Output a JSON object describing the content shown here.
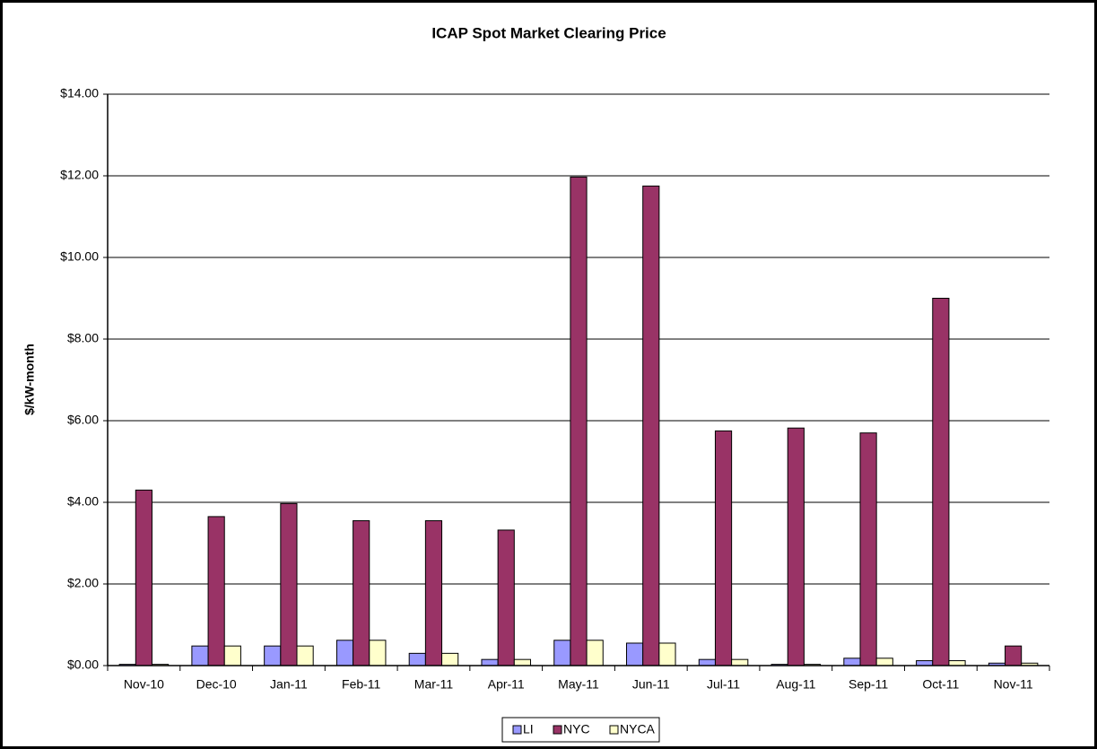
{
  "chart_data": {
    "type": "bar",
    "title": "ICAP Spot Market Clearing Price",
    "y_label": "$/kW-month",
    "categories": [
      "Nov-10",
      "Dec-10",
      "Jan-11",
      "Feb-11",
      "Mar-11",
      "Apr-11",
      "May-11",
      "Jun-11",
      "Jul-11",
      "Aug-11",
      "Sep-11",
      "Oct-11",
      "Nov-11"
    ],
    "series": [
      {
        "name": "LI",
        "color": "#9999ff",
        "values": [
          0.03,
          0.48,
          0.48,
          0.62,
          0.3,
          0.15,
          0.62,
          0.55,
          0.15,
          0.03,
          0.18,
          0.12,
          0.06
        ]
      },
      {
        "name": "NYC",
        "color": "#993366",
        "values": [
          4.3,
          3.65,
          3.97,
          3.55,
          3.55,
          3.32,
          11.97,
          11.75,
          5.75,
          5.82,
          5.7,
          9.0,
          0.48
        ]
      },
      {
        "name": "NYCA",
        "color": "#ffffcc",
        "values": [
          0.03,
          0.48,
          0.48,
          0.62,
          0.3,
          0.15,
          0.62,
          0.55,
          0.15,
          0.03,
          0.18,
          0.12,
          0.06
        ]
      }
    ],
    "ylim": [
      0,
      14
    ],
    "yticks": [
      {
        "value": 0,
        "label": "$0.00"
      },
      {
        "value": 2,
        "label": "$2.00"
      },
      {
        "value": 4,
        "label": "$4.00"
      },
      {
        "value": 6,
        "label": "$6.00"
      },
      {
        "value": 8,
        "label": "$8.00"
      },
      {
        "value": 10,
        "label": "$10.00"
      },
      {
        "value": 12,
        "label": "$12.00"
      },
      {
        "value": 14,
        "label": "$14.00"
      }
    ],
    "grid": true,
    "legend": "bottom"
  }
}
